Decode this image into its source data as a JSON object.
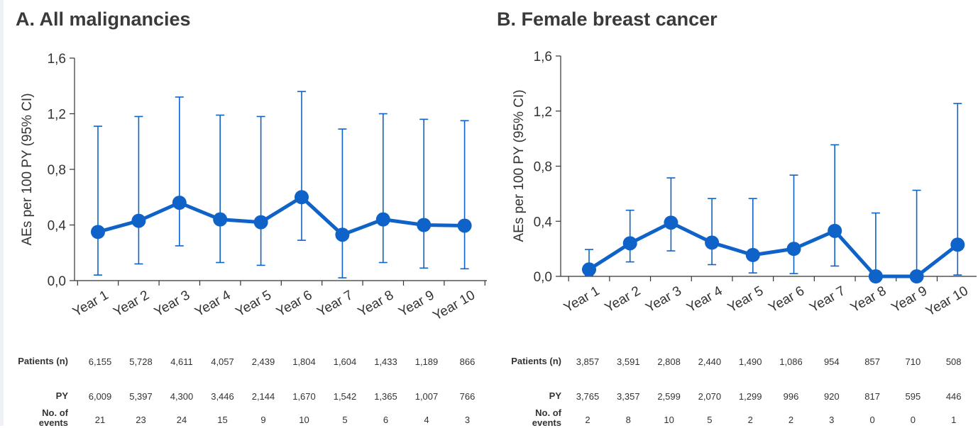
{
  "colors": {
    "series": "#0f62c8",
    "text": "#333333",
    "title": "#3a3a3a"
  },
  "chart_data": [
    {
      "type": "line",
      "title": "A. All malignancies",
      "ylabel": "AEs per 100 PY (95% CI)",
      "xlabel": "",
      "ylim": [
        0,
        1.6
      ],
      "yticks": [
        "0,0",
        "0,4",
        "0,8",
        "1,2",
        "1,6"
      ],
      "categories": [
        "Year 1",
        "Year 2",
        "Year 3",
        "Year 4",
        "Year 5",
        "Year 6",
        "Year 7",
        "Year 8",
        "Year 9",
        "Year 10"
      ],
      "values": [
        0.35,
        0.43,
        0.56,
        0.44,
        0.42,
        0.6,
        0.33,
        0.44,
        0.4,
        0.395
      ],
      "ci_lower": [
        0.04,
        0.12,
        0.25,
        0.13,
        0.11,
        0.29,
        0.02,
        0.13,
        0.09,
        0.085
      ],
      "ci_upper": [
        1.11,
        1.18,
        1.32,
        1.19,
        1.18,
        1.36,
        1.09,
        1.2,
        1.16,
        1.15
      ],
      "grid": false,
      "table": {
        "rows": [
          {
            "label": "Patients (n)",
            "values": [
              "6,155",
              "5,728",
              "4,611",
              "4,057",
              "2,439",
              "1,804",
              "1,604",
              "1,433",
              "1,189",
              "866"
            ]
          },
          {
            "label": "PY",
            "values": [
              "6,009",
              "5,397",
              "4,300",
              "3,446",
              "2,144",
              "1,670",
              "1,542",
              "1,365",
              "1,007",
              "766"
            ]
          },
          {
            "label": "No. of events",
            "label_lines": [
              "No. of",
              "events"
            ],
            "values": [
              "21",
              "23",
              "24",
              "15",
              "9",
              "10",
              "5",
              "6",
              "4",
              "3"
            ]
          }
        ]
      }
    },
    {
      "type": "line",
      "title": "B. Female breast cancer",
      "ylabel": "AEs per 100 PY (95% CI)",
      "xlabel": "",
      "ylim": [
        0,
        1.6
      ],
      "yticks": [
        "0,0",
        "0,4",
        "0,8",
        "1,2",
        "1,6"
      ],
      "categories": [
        "Year 1",
        "Year 2",
        "Year 3",
        "Year 4",
        "Year 5",
        "Year 6",
        "Year 7",
        "Year 8",
        "Year 9",
        "Year 10"
      ],
      "values": [
        0.05,
        0.24,
        0.39,
        0.245,
        0.155,
        0.2,
        0.33,
        0.0,
        0.0,
        0.23
      ],
      "ci_lower": [
        0.005,
        0.105,
        0.185,
        0.085,
        0.025,
        0.02,
        0.075,
        0.0,
        0.0,
        0.01
      ],
      "ci_upper": [
        0.195,
        0.48,
        0.715,
        0.565,
        0.565,
        0.735,
        0.955,
        0.46,
        0.625,
        1.255
      ],
      "grid": false,
      "table": {
        "rows": [
          {
            "label": "Patients (n)",
            "values": [
              "3,857",
              "3,591",
              "2,808",
              "2,440",
              "1,490",
              "1,086",
              "954",
              "857",
              "710",
              "508"
            ]
          },
          {
            "label": "PY",
            "values": [
              "3,765",
              "3,357",
              "2,599",
              "2,070",
              "1,299",
              "996",
              "920",
              "817",
              "595",
              "446"
            ]
          },
          {
            "label": "No. of events",
            "label_lines": [
              "No. of",
              "events"
            ],
            "values": [
              "2",
              "8",
              "10",
              "5",
              "2",
              "2",
              "3",
              "0",
              "0",
              "1"
            ]
          }
        ]
      }
    }
  ]
}
